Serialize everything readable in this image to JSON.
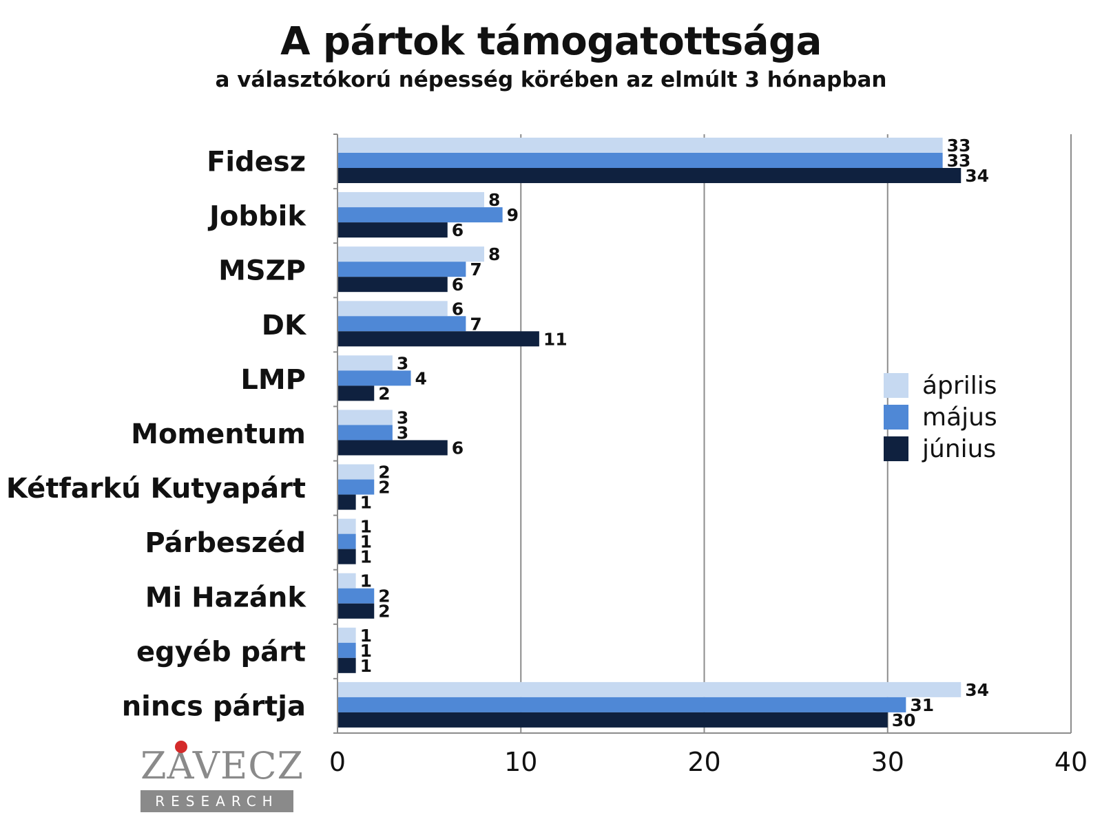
{
  "title": "A pártok támogatottsága",
  "subtitle": "a választókorú népesség körében az elmúlt 3 hónapban",
  "logo": {
    "name": "ZÁVECZ",
    "sub": "RESEARCH"
  },
  "colors": {
    "április": "#c6d9f1",
    "május": "#4f88d6",
    "június": "#0f213f",
    "grid": "#8c8c8c"
  },
  "chart_data": {
    "type": "bar",
    "orientation": "horizontal",
    "categories": [
      "Fidesz",
      "Jobbik",
      "MSZP",
      "DK",
      "LMP",
      "Momentum",
      "Kétfarkú Kutyapárt",
      "Párbeszéd",
      "Mi Hazánk",
      "egyéb párt",
      "nincs pártja"
    ],
    "series": [
      {
        "name": "április",
        "values": [
          33,
          8,
          8,
          6,
          3,
          3,
          2,
          1,
          1,
          1,
          34
        ]
      },
      {
        "name": "május",
        "values": [
          33,
          9,
          7,
          7,
          4,
          3,
          2,
          1,
          2,
          1,
          31
        ]
      },
      {
        "name": "június",
        "values": [
          34,
          6,
          6,
          11,
          2,
          6,
          1,
          1,
          2,
          1,
          30
        ]
      }
    ],
    "xlim": [
      0,
      40
    ],
    "xticks": [
      0,
      10,
      20,
      30,
      40
    ],
    "grid": true,
    "legend": "right"
  }
}
